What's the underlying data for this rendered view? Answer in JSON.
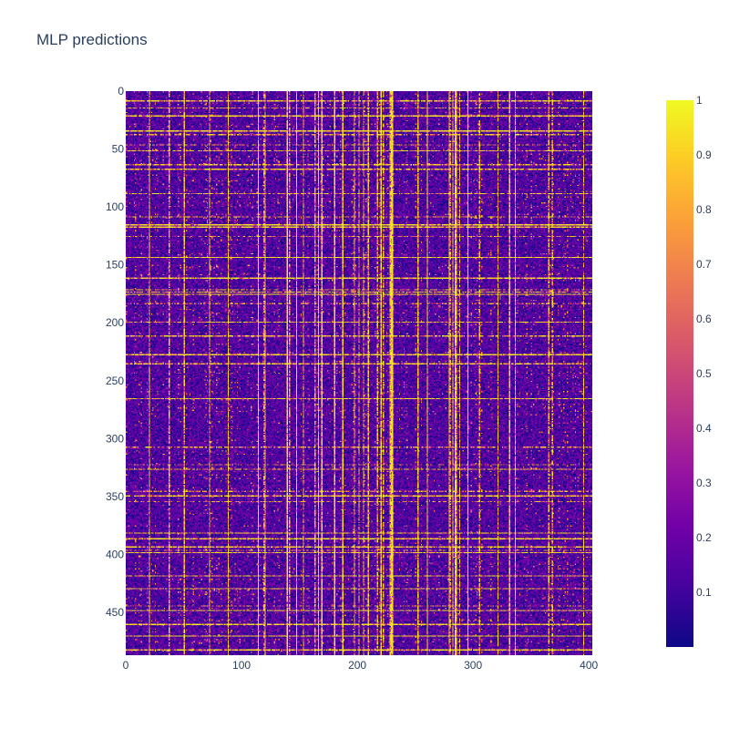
{
  "title": "MLP predictions",
  "chart_data": {
    "type": "heatmap",
    "title": "MLP predictions",
    "rows": 487,
    "cols": 403,
    "xlim": [
      0,
      403
    ],
    "ylim": [
      0,
      487
    ],
    "y_reversed": true,
    "xticks": [
      0,
      100,
      200,
      300,
      400
    ],
    "yticks": [
      0,
      50,
      100,
      150,
      200,
      250,
      300,
      350,
      400,
      450
    ],
    "colorscale": "plasma",
    "zmin": 0,
    "zmax": 1,
    "colorbar_ticks": [
      0.1,
      0.2,
      0.3,
      0.4,
      0.5,
      0.6,
      0.7,
      0.8,
      0.9,
      1
    ],
    "colorbar_stops": [
      "#0d0887",
      "#46039f",
      "#7201a8",
      "#9c179e",
      "#bd3786",
      "#d8576b",
      "#ed7953",
      "#fb9f3a",
      "#fdca26",
      "#f0f921"
    ],
    "xlabel": "",
    "ylabel": ""
  }
}
